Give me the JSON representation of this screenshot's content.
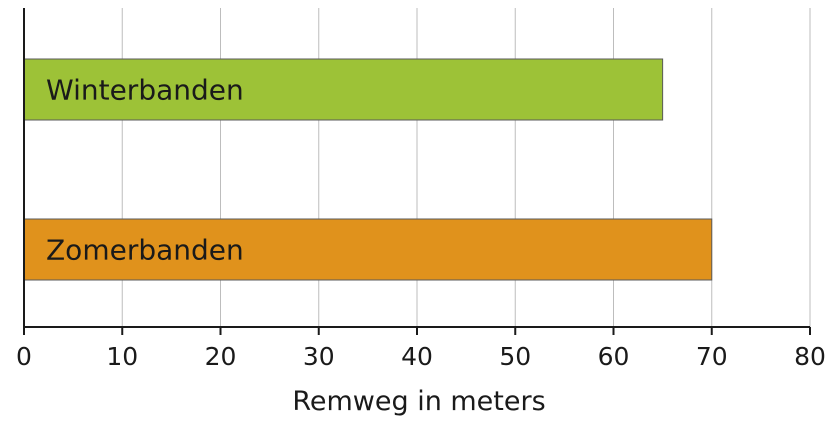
{
  "chart_data": {
    "type": "bar",
    "orientation": "horizontal",
    "title": "",
    "xlabel": "Remweg in meters",
    "ylabel": "",
    "categories": [
      "Winterbanden",
      "Zomerbanden"
    ],
    "values": [
      65,
      70
    ],
    "xlim": [
      0,
      80
    ],
    "xticks": [
      "0",
      "10",
      "20",
      "30",
      "40",
      "50",
      "60",
      "70",
      "80"
    ],
    "grid": "vertical",
    "legend": "none",
    "bar_colors": [
      "#9dc237",
      "#e0921c"
    ],
    "bar_border_color": "#5a5a5a",
    "grid_color": "#bdbdbd",
    "axis_color": "#1a1a1a"
  }
}
